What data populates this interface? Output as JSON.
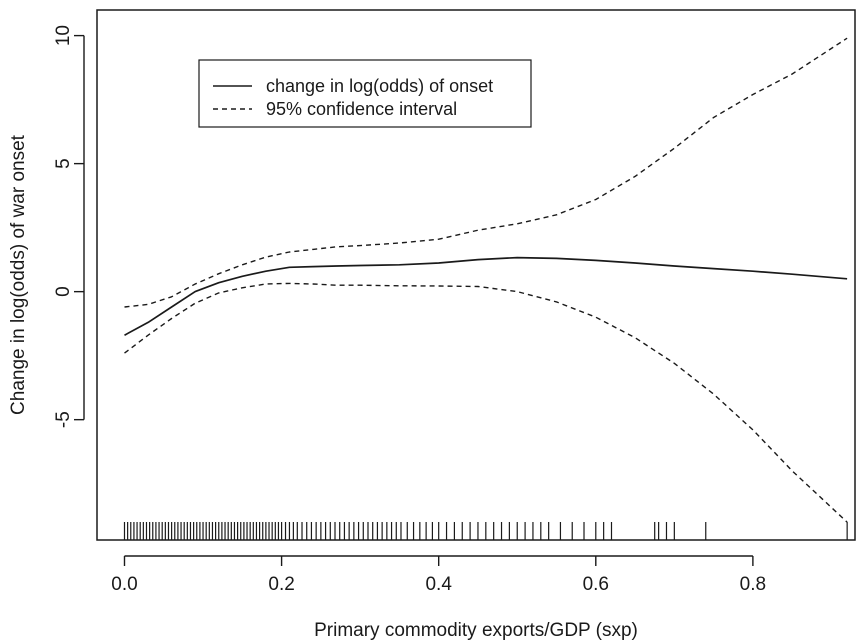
{
  "chart_data": {
    "type": "line",
    "title": "",
    "xlabel": "Primary commodity exports/GDP (sxp)",
    "ylabel": "Change in log(odds) of war onset",
    "xlim": [
      -0.035,
      0.93
    ],
    "ylim": [
      -9.7,
      11.0
    ],
    "x_ticks": [
      0.0,
      0.2,
      0.4,
      0.6,
      0.8
    ],
    "x_tick_labels": [
      "0.0",
      "0.2",
      "0.4",
      "0.6",
      "0.8"
    ],
    "y_ticks": [
      10,
      5,
      0,
      -5
    ],
    "y_tick_labels": [
      "10",
      "5",
      "0",
      "-5"
    ],
    "grid": false,
    "legend_position": "top-left",
    "series": [
      {
        "name": "change in log(odds) of onset",
        "style": "solid",
        "x": [
          0.0,
          0.03,
          0.06,
          0.09,
          0.12,
          0.15,
          0.18,
          0.21,
          0.24,
          0.27,
          0.3,
          0.35,
          0.4,
          0.45,
          0.5,
          0.55,
          0.6,
          0.65,
          0.7,
          0.75,
          0.8,
          0.85,
          0.92
        ],
        "y": [
          -1.7,
          -1.2,
          -0.6,
          0.0,
          0.35,
          0.6,
          0.8,
          0.95,
          0.98,
          1.0,
          1.02,
          1.05,
          1.12,
          1.25,
          1.33,
          1.3,
          1.22,
          1.12,
          1.0,
          0.9,
          0.8,
          0.68,
          0.5
        ]
      },
      {
        "name": "95% confidence interval",
        "style": "dashed",
        "x": [
          0.0,
          0.03,
          0.06,
          0.09,
          0.12,
          0.15,
          0.18,
          0.21,
          0.24,
          0.27,
          0.3,
          0.35,
          0.4,
          0.45,
          0.5,
          0.55,
          0.6,
          0.65,
          0.7,
          0.75,
          0.8,
          0.85,
          0.92
        ],
        "y": [
          -0.6,
          -0.5,
          -0.2,
          0.3,
          0.7,
          1.05,
          1.35,
          1.55,
          1.65,
          1.75,
          1.8,
          1.9,
          2.05,
          2.4,
          2.65,
          3.0,
          3.6,
          4.5,
          5.6,
          6.8,
          7.7,
          8.5,
          9.9
        ]
      },
      {
        "name": "",
        "style": "dashed",
        "x": [
          0.0,
          0.03,
          0.06,
          0.09,
          0.12,
          0.15,
          0.18,
          0.21,
          0.24,
          0.27,
          0.3,
          0.35,
          0.4,
          0.45,
          0.5,
          0.55,
          0.6,
          0.65,
          0.7,
          0.75,
          0.8,
          0.85,
          0.92
        ],
        "y": [
          -2.4,
          -1.7,
          -1.05,
          -0.45,
          -0.05,
          0.15,
          0.3,
          0.32,
          0.3,
          0.25,
          0.25,
          0.23,
          0.22,
          0.2,
          0.0,
          -0.4,
          -1.0,
          -1.8,
          -2.8,
          -4.0,
          -5.4,
          -7.0,
          -9.0
        ]
      }
    ],
    "rug": [
      0.0,
      0.004,
      0.008,
      0.012,
      0.016,
      0.02,
      0.024,
      0.028,
      0.032,
      0.036,
      0.04,
      0.044,
      0.048,
      0.052,
      0.056,
      0.06,
      0.064,
      0.068,
      0.072,
      0.076,
      0.08,
      0.084,
      0.088,
      0.092,
      0.096,
      0.1,
      0.104,
      0.108,
      0.112,
      0.116,
      0.12,
      0.124,
      0.128,
      0.132,
      0.136,
      0.14,
      0.144,
      0.148,
      0.152,
      0.156,
      0.16,
      0.164,
      0.168,
      0.172,
      0.176,
      0.18,
      0.184,
      0.188,
      0.192,
      0.196,
      0.2,
      0.205,
      0.21,
      0.215,
      0.22,
      0.226,
      0.232,
      0.238,
      0.244,
      0.25,
      0.256,
      0.262,
      0.268,
      0.274,
      0.28,
      0.286,
      0.292,
      0.298,
      0.304,
      0.31,
      0.316,
      0.322,
      0.328,
      0.334,
      0.34,
      0.346,
      0.352,
      0.36,
      0.368,
      0.376,
      0.384,
      0.392,
      0.4,
      0.41,
      0.42,
      0.43,
      0.44,
      0.45,
      0.46,
      0.47,
      0.48,
      0.49,
      0.5,
      0.51,
      0.52,
      0.53,
      0.54,
      0.555,
      0.57,
      0.585,
      0.6,
      0.61,
      0.62,
      0.675,
      0.68,
      0.69,
      0.7,
      0.74,
      0.92
    ]
  }
}
